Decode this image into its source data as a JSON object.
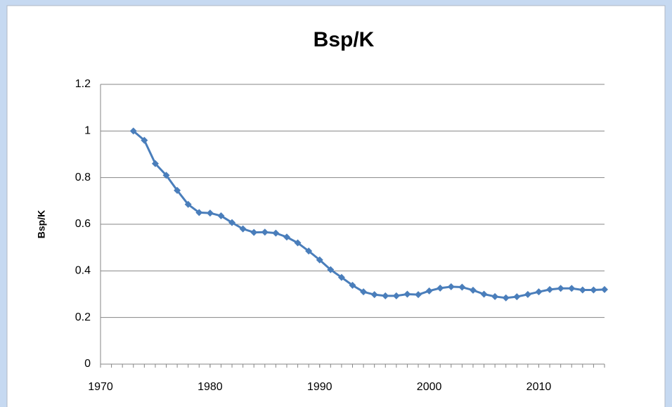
{
  "chart_data": {
    "type": "line",
    "title": "Bsp/K",
    "y_label": "Bsp/K",
    "x": [
      1973,
      1974,
      1975,
      1976,
      1977,
      1978,
      1979,
      1980,
      1981,
      1982,
      1983,
      1984,
      1985,
      1986,
      1987,
      1988,
      1989,
      1990,
      1991,
      1992,
      1993,
      1994,
      1995,
      1996,
      1997,
      1998,
      1999,
      2000,
      2001,
      2002,
      2003,
      2004,
      2005,
      2006,
      2007,
      2008,
      2009,
      2010,
      2011,
      2012,
      2013,
      2014,
      2015,
      2016
    ],
    "series": [
      {
        "color": "#4a7ebb",
        "values": [
          1.0,
          0.96,
          0.86,
          0.81,
          0.745,
          0.685,
          0.65,
          0.648,
          0.636,
          0.607,
          0.58,
          0.565,
          0.566,
          0.562,
          0.545,
          0.52,
          0.485,
          0.447,
          0.405,
          0.372,
          0.338,
          0.31,
          0.298,
          0.293,
          0.293,
          0.3,
          0.298,
          0.314,
          0.326,
          0.332,
          0.33,
          0.317,
          0.3,
          0.29,
          0.284,
          0.289,
          0.299,
          0.31,
          0.32,
          0.325,
          0.325,
          0.318,
          0.318,
          0.32
        ]
      }
    ],
    "xlim": [
      1970,
      2016
    ],
    "xticks": [
      1970,
      1980,
      1990,
      2000,
      2010
    ],
    "ylim": [
      0,
      1.2
    ],
    "yticks": [
      0,
      0.2,
      0.4,
      0.6,
      0.8,
      1,
      1.2
    ],
    "grid": true
  }
}
